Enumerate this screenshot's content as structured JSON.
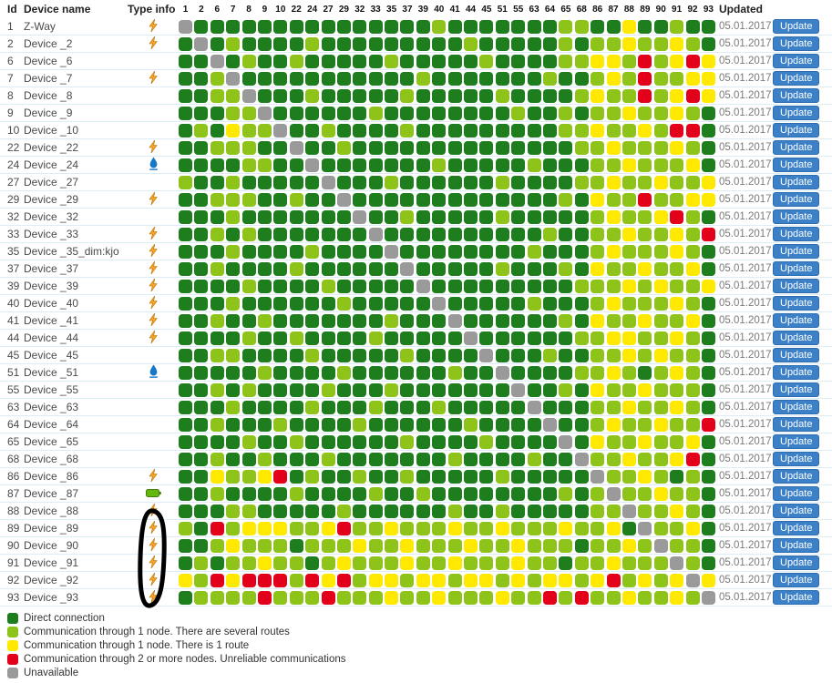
{
  "header": {
    "id_label": "Id",
    "device_name_label": "Device name",
    "type_info_label": "Type info",
    "updated_label": "Updated",
    "columns": [
      "1",
      "2",
      "6",
      "7",
      "8",
      "9",
      "10",
      "22",
      "24",
      "27",
      "29",
      "32",
      "33",
      "35",
      "37",
      "39",
      "40",
      "41",
      "44",
      "45",
      "51",
      "55",
      "63",
      "64",
      "65",
      "68",
      "86",
      "87",
      "88",
      "89",
      "90",
      "91",
      "92",
      "93"
    ]
  },
  "colors": {
    "direct": "#1e7e1e",
    "several_routes": "#8ec319",
    "one_route": "#ffe900",
    "unreliable": "#e2001a",
    "unavailable": "#9a9a9a"
  },
  "cell_code_map": {
    "D": "direct",
    "L": "several_routes",
    "Y": "one_route",
    "R": "unreliable",
    "U": "unavailable"
  },
  "update_button_label": "Update",
  "updated_date": "05.01.2017",
  "devices": [
    {
      "id": "1",
      "name": "Z-Way",
      "type_icon": "lightning-icon",
      "cells": "UDDDDDDDDDDDDDDDLDDDDDDDLLDDYDDLDD"
    },
    {
      "id": "2",
      "name": "Device _2",
      "type_icon": "lightning-icon",
      "cells": "DUDLDDDDLDDDDDDDDDLDDDDDLDLLYLLYLD"
    },
    {
      "id": "6",
      "name": "Device _6",
      "type_icon": "",
      "cells": "DDUDLDDLDDDDDLDDDDDLDDDDLLYYLRLYRY"
    },
    {
      "id": "7",
      "name": "Device _7",
      "type_icon": "lightning-icon",
      "cells": "DDLUDDDDDDDDDDDLDDDDDDDLDDLYLRLLYY"
    },
    {
      "id": "8",
      "name": "Device _8",
      "type_icon": "",
      "cells": "DDLLUDDDLDDDDDLDDDDDLDDDDLYLLRLYRY"
    },
    {
      "id": "9",
      "name": "Device _9",
      "type_icon": "",
      "cells": "DDDLLUDDDDDDLDDDDDDDDLDDLDLLYLLYLD"
    },
    {
      "id": "10",
      "name": "Device _10",
      "type_icon": "",
      "cells": "DLDYLLUDDLDDDDLDDDDDDDDDLLYLLYLRRD"
    },
    {
      "id": "22",
      "name": "Device _22",
      "type_icon": "lightning-icon",
      "cells": "DDLLLDDUDDLDDDDDDDDDDDDDDLLYLLLYLD"
    },
    {
      "id": "24",
      "name": "Device _24",
      "type_icon": "droplet-icon",
      "cells": "DDDDLLDDUDDDDDDDLDDDDDLDDDLLYLLLYD"
    },
    {
      "id": "27",
      "name": "Device _27",
      "type_icon": "",
      "cells": "LDDLDDDDDUDDDLDDDDDDLDDDDLLYLLYLLY"
    },
    {
      "id": "29",
      "name": "Device _29",
      "type_icon": "lightning-icon",
      "cells": "DDLLLDDLDDUDDDDDDDDDDDDDLDYLLRLLYY"
    },
    {
      "id": "32",
      "name": "Device _32",
      "type_icon": "",
      "cells": "DDDLDDDDDDDUDDLDDDDDLDDDDDLYLLYRLD"
    },
    {
      "id": "33",
      "name": "Device _33",
      "type_icon": "lightning-icon",
      "cells": "DDLDLDDDDDDDUDDDDDDDDDDLDDLLYLLYLR"
    },
    {
      "id": "35",
      "name": "Device _35_dim:kjo",
      "type_icon": "lightning-icon",
      "cells": "DDDLDDDDLDDDDUDDDDDDDDLDDDLYLLLYLD"
    },
    {
      "id": "37",
      "name": "Device _37",
      "type_icon": "lightning-icon",
      "cells": "DDLDDDDLDDDDDDUDDDDDLDDDLDYLLYLLYD"
    },
    {
      "id": "39",
      "name": "Device _39",
      "type_icon": "lightning-icon",
      "cells": "DDDDLDDDDLDDDDDUDDDDDDDDDLLLYLYLLY"
    },
    {
      "id": "40",
      "name": "Device _40",
      "type_icon": "lightning-icon",
      "cells": "DDDLDDDDDDLDDDDDUDDDDDLDDDLYLLLYLD"
    },
    {
      "id": "41",
      "name": "Device _41",
      "type_icon": "lightning-icon",
      "cells": "DDLDDLDDDDDDDLDDDUDDDDDDLDYLLYLLYD"
    },
    {
      "id": "44",
      "name": "Device _44",
      "type_icon": "lightning-icon",
      "cells": "DDDDLDDLDDDDLDDDDDUDDDDDDLLYYLLYLD"
    },
    {
      "id": "45",
      "name": "Device _45",
      "type_icon": "",
      "cells": "DDLLDDDDLDDDDDLDDDDUDDDLDDLLYLYLLD"
    },
    {
      "id": "51",
      "name": "Device _51",
      "type_icon": "droplet-icon",
      "cells": "DDDDDLDDDDLDDDDDDLDDUDDDDLLYLDLYLD"
    },
    {
      "id": "55",
      "name": "Device _55",
      "type_icon": "",
      "cells": "DDLDLDDDDLDDDLDDDDDDDUDDLDYLLYLLLD"
    },
    {
      "id": "63",
      "name": "Device _63",
      "type_icon": "",
      "cells": "DDDLDDDDLDDDLDDDLDDDDDUDDDLLYLLYLD"
    },
    {
      "id": "64",
      "name": "Device _64",
      "type_icon": "",
      "cells": "DDLDDDLDDDDLDDDDDDLDDDDUDDLYLLYLLR"
    },
    {
      "id": "65",
      "name": "Device _65",
      "type_icon": "",
      "cells": "DDDDLDDLDDDDDDLDDDDLDDDDUDYLLYLLYD"
    },
    {
      "id": "68",
      "name": "Device _68",
      "type_icon": "",
      "cells": "DDLDDLDDDLDDDDDDDLDDDDLDDULLYLLYRD"
    },
    {
      "id": "86",
      "name": "Device _86",
      "type_icon": "lightning-icon",
      "cells": "DDYLLYRDLDDLDDLDDDDDLDDDDDULLYLDLD"
    },
    {
      "id": "87",
      "name": "Device _87",
      "type_icon": "battery-icon",
      "cells": "DDLDDDDLDDDDLDDLDDDDDDDDLDLULLYLLD"
    },
    {
      "id": "88",
      "name": "Device _88",
      "type_icon": "lightning-icon",
      "cells": "DDDLLDDDDDLDDDDDDLDDLDDDDDLLULLYLD"
    },
    {
      "id": "89",
      "name": "Device _89",
      "type_icon": "lightning-icon",
      "cells": "LDRLYYYLLYRLLYLLLYLLYLLLYLLYDULLYD"
    },
    {
      "id": "90",
      "name": "Device _90",
      "type_icon": "lightning-icon",
      "cells": "DDLYLLLDLLLYLLYLLLYLLYLLLDLLYLULLD"
    },
    {
      "id": "91",
      "name": "Device _91",
      "type_icon": "lightning-icon",
      "cells": "DLDLLYLLDLYLLLYLLYLLLYLLDLLYLLLULD"
    },
    {
      "id": "92",
      "name": "Device _92",
      "type_icon": "lightning-icon",
      "cells": "YLRYRRRLRYRLYYLYYLYYLYLYYLYRLYLYUY"
    },
    {
      "id": "93",
      "name": "Device _93",
      "type_icon": "lightning-icon",
      "cells": "DLLLLRLLLRLLLYLLYLLLYLLRLRLLYLLYLU"
    }
  ],
  "legend": [
    {
      "color_key": "direct",
      "label": "Direct connection"
    },
    {
      "color_key": "several_routes",
      "label": "Communication through 1 node. There are several routes"
    },
    {
      "color_key": "one_route",
      "label": "Communication through 1 node. There is 1 route"
    },
    {
      "color_key": "unreliable",
      "label": "Communication through 2 or more nodes. Unreliable communications"
    },
    {
      "color_key": "unavailable",
      "label": "Unavailable"
    }
  ]
}
